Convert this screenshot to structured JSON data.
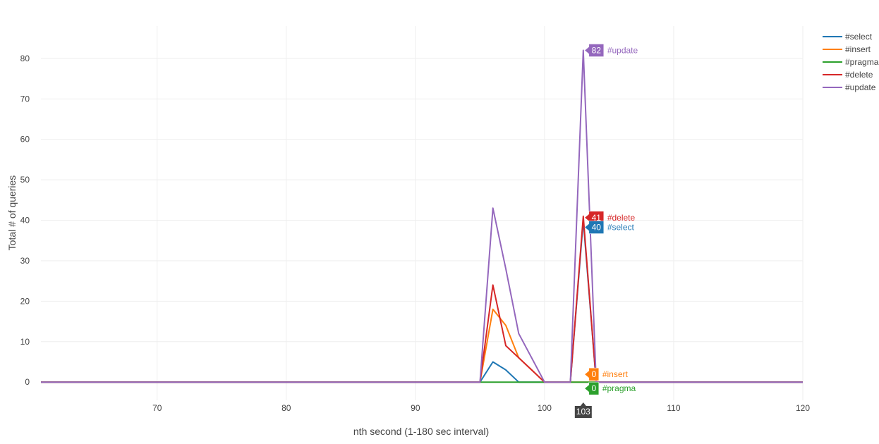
{
  "chart_data": {
    "type": "line",
    "xlabel": "nth second (1-180 sec interval)",
    "ylabel": "Total # of queries",
    "xlim": [
      61,
      120
    ],
    "ylim": [
      -4.5,
      88
    ],
    "xticks": [
      70,
      80,
      90,
      100,
      110,
      120
    ],
    "yticks": [
      0,
      10,
      20,
      30,
      40,
      50,
      60,
      70,
      80
    ],
    "grid": true,
    "legend_position": "top-right",
    "x": [
      61,
      95,
      96,
      97,
      98,
      99,
      100,
      101,
      102,
      103,
      104,
      105,
      106,
      107,
      108,
      120
    ],
    "series": [
      {
        "name": "#select",
        "color": "#1f77b4",
        "values": [
          0,
          0,
          5,
          3,
          0,
          0,
          0,
          0,
          0,
          40,
          0,
          0,
          0,
          0,
          0,
          0
        ]
      },
      {
        "name": "#insert",
        "color": "#ff7f0e",
        "values": [
          0,
          0,
          18,
          14,
          6,
          3,
          0,
          0,
          0,
          0,
          0,
          0,
          0,
          0,
          0,
          0
        ]
      },
      {
        "name": "#pragma",
        "color": "#2ca02c",
        "values": [
          0,
          0,
          0,
          0,
          0,
          0,
          0,
          0,
          0,
          0,
          0,
          0,
          0,
          0,
          0,
          0
        ]
      },
      {
        "name": "#delete",
        "color": "#d62728",
        "values": [
          0,
          0,
          24,
          9,
          6,
          3,
          0,
          0,
          0,
          41,
          0,
          0,
          0,
          0,
          0,
          0
        ]
      },
      {
        "name": "#update",
        "color": "#9467bd",
        "values": [
          0,
          0,
          43,
          28,
          12,
          6,
          0,
          0,
          0,
          82,
          0,
          0,
          0,
          0,
          0,
          0
        ]
      }
    ],
    "hover": {
      "x": 103,
      "x_label": "103",
      "points": [
        {
          "series": "#update",
          "value": 82,
          "label": "82",
          "name": "#update",
          "color": "#9467bd"
        },
        {
          "series": "#delete",
          "value": 41,
          "label": "41",
          "name": "#delete",
          "color": "#d62728"
        },
        {
          "series": "#select",
          "value": 40,
          "label": "40",
          "name": "#select",
          "color": "#1f77b4"
        },
        {
          "series": "#insert",
          "value": 0,
          "label": "0",
          "name": "#insert",
          "color": "#ff7f0e"
        },
        {
          "series": "#pragma",
          "value": 0,
          "label": "0",
          "name": "#pragma",
          "color": "#2ca02c"
        }
      ]
    }
  }
}
